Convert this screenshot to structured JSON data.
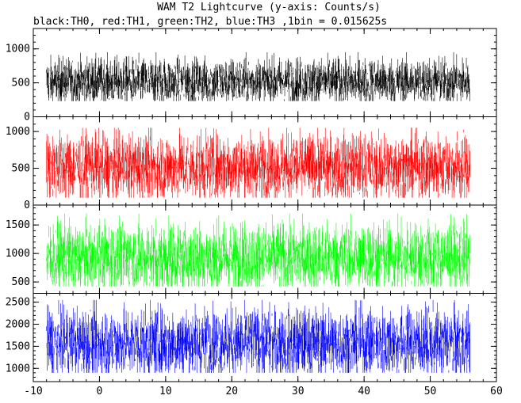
{
  "title": "WAM T2 Lightcurve (y-axis: Counts/s)",
  "subtitle": "black:TH0, red:TH1, green:TH2, blue:TH3 ,1bin = 0.015625s",
  "colors": {
    "axis": "#000000",
    "background": "#ffffff"
  },
  "chart_data": {
    "type": "line",
    "title": "WAM T2 Lightcurve (y-axis: Counts/s)",
    "subtitle": "black:TH0, red:TH1, green:TH2, blue:TH3 ,1bin = 0.015625s",
    "xlabel": "",
    "x_range": [
      -10,
      60
    ],
    "x_ticks": [
      -10,
      0,
      10,
      20,
      30,
      40,
      50,
      60
    ],
    "x_tick_labels": [
      "-10",
      "0",
      "10",
      "20",
      "30",
      "40",
      "50",
      "60"
    ],
    "bin_size_s": 0.015625,
    "grid": false,
    "panels": [
      {
        "series": "TH0",
        "color": "#000000",
        "ylim": [
          0,
          1300
        ],
        "y_ticks": [
          0,
          500,
          1000
        ],
        "y_tick_labels": [
          "0",
          "500",
          "1000"
        ],
        "x_start": -8.0,
        "x_end": 56.0,
        "mean": 520,
        "range_low": 230,
        "range_high": 950
      },
      {
        "series": "TH1",
        "color": "#ff0000",
        "ylim": [
          0,
          1200
        ],
        "y_ticks": [
          0,
          500,
          1000
        ],
        "y_tick_labels": [
          "0",
          "500",
          "1000"
        ],
        "x_start": -8.0,
        "x_end": 56.0,
        "mean": 520,
        "range_low": 100,
        "range_high": 1050
      },
      {
        "series": "TH2",
        "color": "#00ff00",
        "ylim": [
          300,
          1850
        ],
        "y_ticks": [
          500,
          1000,
          1500
        ],
        "y_tick_labels": [
          "500",
          "1000",
          "1500"
        ],
        "x_start": -8.0,
        "x_end": 56.0,
        "mean": 930,
        "range_low": 420,
        "range_high": 1700
      },
      {
        "series": "TH3",
        "color": "#0000ff",
        "ylim": [
          700,
          2700
        ],
        "y_ticks": [
          1000,
          1500,
          2000,
          2500
        ],
        "y_tick_labels": [
          "1000",
          "1500",
          "2000",
          "2500"
        ],
        "x_start": -8.0,
        "x_end": 56.0,
        "mean": 1580,
        "range_low": 900,
        "range_high": 2550
      }
    ]
  }
}
